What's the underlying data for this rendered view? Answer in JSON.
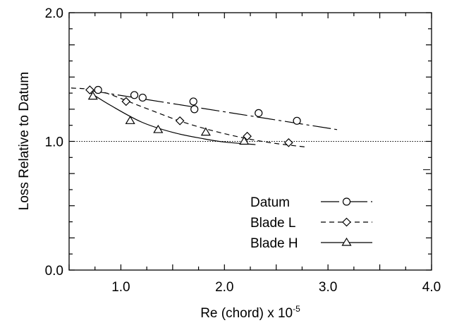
{
  "chart_data": {
    "type": "scatter",
    "xlabel": "Re (chord) x 10",
    "xlabel_exponent": "-5",
    "ylabel": "Loss Relative to Datum",
    "xlim": [
      0.5,
      4.0
    ],
    "ylim": [
      0.0,
      2.0
    ],
    "x_ticks": [
      "1.0",
      "2.0",
      "3.0",
      "4.0"
    ],
    "y_ticks": [
      "0.0",
      "1.0",
      "2.0"
    ],
    "reference_line": {
      "y": 1.0,
      "style": "dotted"
    },
    "legend_placement": "bottom-right",
    "series": [
      {
        "name": "Datum",
        "marker": "circle",
        "line_style": "dashdot",
        "points": [
          {
            "x": 0.78,
            "y": 1.4
          },
          {
            "x": 1.13,
            "y": 1.36
          },
          {
            "x": 1.21,
            "y": 1.34
          },
          {
            "x": 1.7,
            "y": 1.31
          },
          {
            "x": 1.71,
            "y": 1.25
          },
          {
            "x": 2.33,
            "y": 1.22
          },
          {
            "x": 2.7,
            "y": 1.16
          }
        ],
        "fit": [
          {
            "x": 0.7,
            "y": 1.395
          },
          {
            "x": 3.1,
            "y": 1.09
          }
        ]
      },
      {
        "name": "Blade L",
        "marker": "diamond",
        "line_style": "dashed",
        "points": [
          {
            "x": 0.7,
            "y": 1.4
          },
          {
            "x": 1.05,
            "y": 1.31
          },
          {
            "x": 1.57,
            "y": 1.16
          },
          {
            "x": 2.22,
            "y": 1.04
          },
          {
            "x": 2.62,
            "y": 0.99
          }
        ],
        "fit": [
          {
            "x": 0.52,
            "y": 1.415
          },
          {
            "x": 0.8,
            "y": 1.39
          },
          {
            "x": 1.2,
            "y": 1.27
          },
          {
            "x": 1.6,
            "y": 1.15
          },
          {
            "x": 2.0,
            "y": 1.06
          },
          {
            "x": 2.4,
            "y": 0.995
          },
          {
            "x": 2.8,
            "y": 0.955
          }
        ]
      },
      {
        "name": "Blade H",
        "marker": "triangle",
        "line_style": "solid",
        "points": [
          {
            "x": 0.73,
            "y": 1.35
          },
          {
            "x": 1.09,
            "y": 1.16
          },
          {
            "x": 1.36,
            "y": 1.09
          },
          {
            "x": 1.82,
            "y": 1.07
          },
          {
            "x": 2.19,
            "y": 1.0
          }
        ],
        "fit": [
          {
            "x": 0.7,
            "y": 1.38
          },
          {
            "x": 0.9,
            "y": 1.28
          },
          {
            "x": 1.2,
            "y": 1.15
          },
          {
            "x": 1.5,
            "y": 1.07
          },
          {
            "x": 1.8,
            "y": 1.02
          },
          {
            "x": 2.0,
            "y": 0.995
          },
          {
            "x": 2.3,
            "y": 0.975
          }
        ]
      }
    ]
  }
}
